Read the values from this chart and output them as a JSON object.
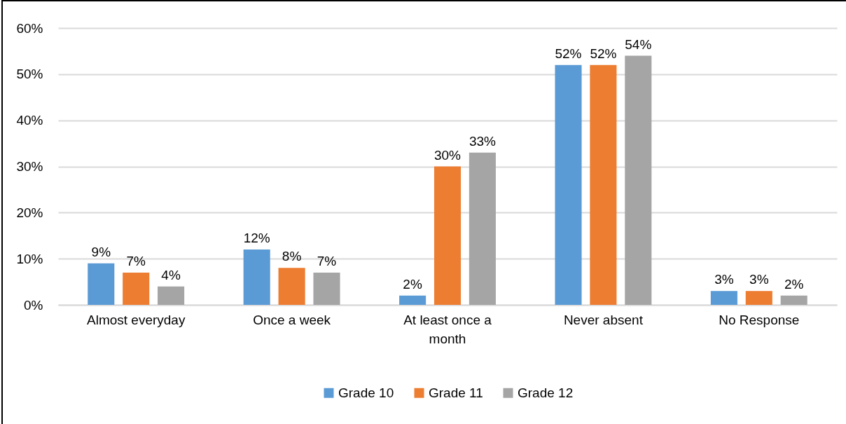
{
  "chart_data": {
    "type": "bar",
    "categories": [
      "Almost everyday",
      "Once a week",
      "At least once a month",
      "Never absent",
      "No Response"
    ],
    "series": [
      {
        "name": "Grade 10",
        "color": "#5b9bd5",
        "values": [
          9,
          12,
          2,
          52,
          3
        ],
        "value_labels": [
          "9%",
          "12%",
          "2%",
          "52%",
          "3%"
        ]
      },
      {
        "name": "Grade 11",
        "color": "#ed7d31",
        "values": [
          7,
          8,
          30,
          52,
          3
        ],
        "value_labels": [
          "7%",
          "8%",
          "30%",
          "52%",
          "3%"
        ]
      },
      {
        "name": "Grade 12",
        "color": "#a5a5a5",
        "values": [
          4,
          7,
          33,
          54,
          2
        ],
        "value_labels": [
          "4%",
          "7%",
          "33%",
          "54%",
          "2%"
        ]
      }
    ],
    "ylim": [
      0,
      60
    ],
    "yticks": [
      {
        "value": 0,
        "label": "0%"
      },
      {
        "value": 10,
        "label": "10%"
      },
      {
        "value": 20,
        "label": "20%"
      },
      {
        "value": 30,
        "label": "30%"
      },
      {
        "value": 40,
        "label": "40%"
      },
      {
        "value": 50,
        "label": "50%"
      },
      {
        "value": 60,
        "label": "60%"
      }
    ],
    "grid": "y",
    "legend": "bottom"
  }
}
